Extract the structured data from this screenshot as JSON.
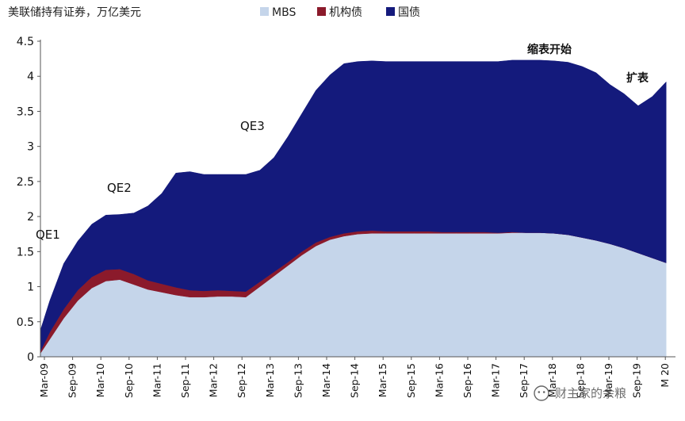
{
  "chart_data": {
    "type": "area",
    "stacked": true,
    "title": "美联储持有证券，万亿美元",
    "xlabel": "",
    "ylabel": "",
    "ylim": [
      0,
      4.5
    ],
    "yticks": [
      "0",
      "0.5",
      "1",
      "1.5",
      "2",
      "2.5",
      "3",
      "3.5",
      "4",
      "4.5"
    ],
    "xticks": [
      "Mar-09",
      "Sep-09",
      "Mar-10",
      "Sep-10",
      "Mar-11",
      "Sep-11",
      "Mar-12",
      "Sep-12",
      "Mar-13",
      "Sep-13",
      "Mar-14",
      "Sep-14",
      "Mar-15",
      "Sep-15",
      "Mar-16",
      "Sep-16",
      "Mar-17",
      "Sep-17",
      "Mar-18",
      "Sep-18",
      "Mar-19",
      "Sep-19",
      "M 20"
    ],
    "legend_position": "top",
    "x": [
      "2009-01",
      "2009-03",
      "2009-06",
      "2009-09",
      "2009-12",
      "2010-03",
      "2010-06",
      "2010-09",
      "2010-12",
      "2011-03",
      "2011-06",
      "2011-09",
      "2011-12",
      "2012-03",
      "2012-06",
      "2012-09",
      "2012-12",
      "2013-03",
      "2013-06",
      "2013-09",
      "2013-12",
      "2014-03",
      "2014-06",
      "2014-09",
      "2014-12",
      "2015-03",
      "2015-06",
      "2015-09",
      "2015-12",
      "2016-03",
      "2016-06",
      "2016-09",
      "2016-12",
      "2017-03",
      "2017-06",
      "2017-09",
      "2017-12",
      "2018-03",
      "2018-06",
      "2018-09",
      "2018-12",
      "2019-03",
      "2019-06",
      "2019-09",
      "2019-12",
      "2020-03"
    ],
    "series": [
      {
        "name": "MBS",
        "color": "#c5d5ea",
        "values": [
          0.05,
          0.25,
          0.55,
          0.8,
          0.98,
          1.08,
          1.1,
          1.03,
          0.96,
          0.92,
          0.88,
          0.85,
          0.85,
          0.86,
          0.86,
          0.85,
          1.0,
          1.15,
          1.3,
          1.45,
          1.58,
          1.67,
          1.72,
          1.75,
          1.76,
          1.76,
          1.76,
          1.76,
          1.76,
          1.76,
          1.76,
          1.76,
          1.76,
          1.76,
          1.77,
          1.77,
          1.77,
          1.76,
          1.74,
          1.7,
          1.66,
          1.61,
          1.55,
          1.48,
          1.41,
          1.34
        ]
      },
      {
        "name": "机构债",
        "color": "#8b1a2b",
        "values": [
          0.03,
          0.1,
          0.13,
          0.15,
          0.16,
          0.16,
          0.15,
          0.15,
          0.13,
          0.12,
          0.11,
          0.1,
          0.09,
          0.09,
          0.08,
          0.08,
          0.07,
          0.06,
          0.05,
          0.05,
          0.05,
          0.04,
          0.04,
          0.04,
          0.04,
          0.03,
          0.03,
          0.03,
          0.03,
          0.02,
          0.02,
          0.02,
          0.02,
          0.01,
          0.01,
          0.0,
          0.0,
          0.0,
          0.0,
          0.0,
          0.0,
          0.0,
          0.0,
          0.0,
          0.0,
          0.0
        ]
      },
      {
        "name": "国债",
        "color": "#141a7c",
        "values": [
          0.3,
          0.45,
          0.65,
          0.7,
          0.75,
          0.78,
          0.78,
          0.87,
          1.06,
          1.29,
          1.63,
          1.69,
          1.66,
          1.65,
          1.66,
          1.67,
          1.59,
          1.63,
          1.79,
          1.97,
          2.17,
          2.31,
          2.42,
          2.42,
          2.42,
          2.42,
          2.42,
          2.42,
          2.42,
          2.43,
          2.43,
          2.43,
          2.43,
          2.44,
          2.45,
          2.46,
          2.46,
          2.46,
          2.46,
          2.44,
          2.39,
          2.27,
          2.2,
          2.1,
          2.3,
          2.58
        ]
      }
    ],
    "annotations": [
      {
        "text": "QE1",
        "x": "2009-03",
        "y": 1.7
      },
      {
        "text": "QE2",
        "x": "2010-06",
        "y": 2.35
      },
      {
        "text": "QE3",
        "x": "2013-03",
        "y": 3.2
      },
      {
        "text": "缩表开始",
        "x": "2017-12",
        "y": 4.35
      },
      {
        "text": "扩表",
        "x": "2019-12",
        "y": 3.95
      }
    ]
  },
  "watermark": "财主家的余粮",
  "watermark_icon": "wechat-icon"
}
